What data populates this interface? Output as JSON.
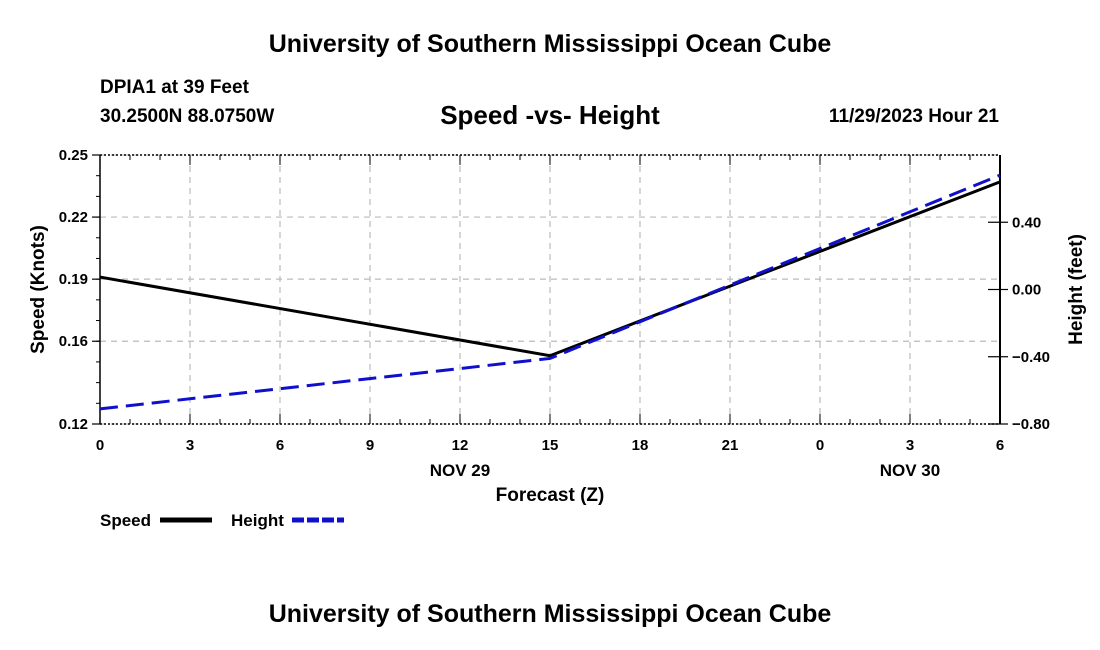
{
  "page": {
    "title": "University of Southern Mississippi Ocean Cube",
    "footer_title": "University of Southern Mississippi Ocean Cube",
    "station": "DPIA1 at 39 Feet",
    "coords": "30.2500N  88.0750W",
    "chart_title": "Speed -vs- Height",
    "datetime": "11/29/2023 Hour 21"
  },
  "chart_data": {
    "type": "line",
    "title": "Speed -vs- Height",
    "xlabel": "Forecast (Z)",
    "ylabel": "Speed (Knots)",
    "y2label": "Height (feet)",
    "x_hours": [
      0,
      3,
      6,
      9,
      12,
      15,
      18,
      21,
      24,
      27,
      30
    ],
    "x_tick_labels": [
      "0",
      "3",
      "6",
      "9",
      "12",
      "15",
      "18",
      "21",
      "0",
      "3",
      "6"
    ],
    "date_labels": [
      {
        "label": "NOV 29",
        "hour": 12
      },
      {
        "label": "NOV 30",
        "hour": 27
      }
    ],
    "xlim": [
      0,
      30
    ],
    "ylim": [
      0.12,
      0.25
    ],
    "y_ticks": [
      0.12,
      0.16,
      0.19,
      0.22,
      0.25
    ],
    "y_tick_labels": [
      "0.12",
      "0.16",
      "0.19",
      "0.22",
      "0.25"
    ],
    "y2lim": [
      -0.8,
      0.8
    ],
    "y2_ticks": [
      -0.8,
      -0.4,
      0.0,
      0.4
    ],
    "y2_tick_labels": [
      "−0.80",
      "−0.40",
      "0.00",
      "0.40"
    ],
    "grid": true,
    "legend_position": "bottom-left",
    "series": [
      {
        "name": "Speed",
        "axis": "left",
        "color": "#000000",
        "style": "solid",
        "x": [
          0,
          15,
          30
        ],
        "values": [
          0.191,
          0.153,
          0.237
        ]
      },
      {
        "name": "Height",
        "axis": "right",
        "color": "#1010cc",
        "style": "dashed",
        "x": [
          0,
          15,
          30
        ],
        "values": [
          -0.71,
          -0.41,
          0.68
        ]
      }
    ]
  }
}
